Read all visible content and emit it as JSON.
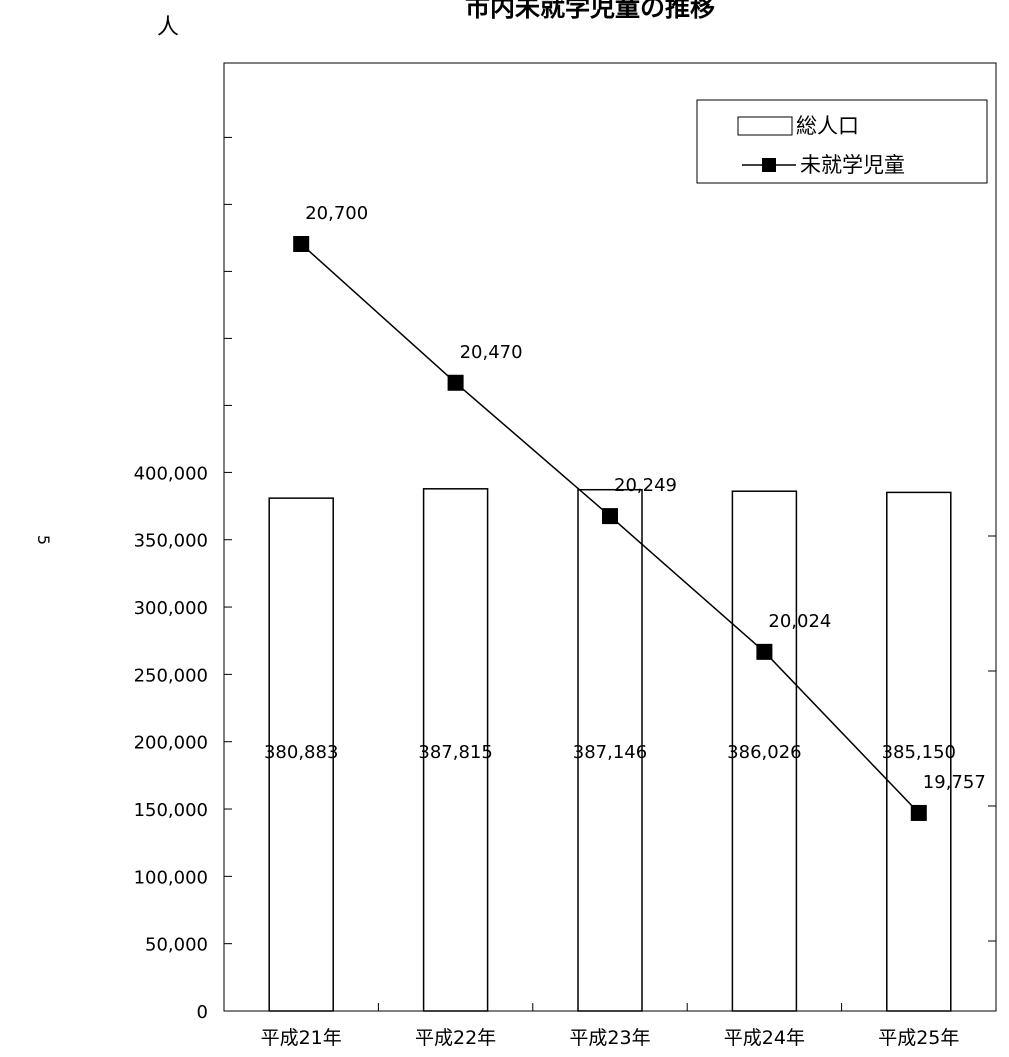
{
  "chart_data": {
    "type": "bar",
    "title": "市内未就学児童の推移",
    "unit_label": "人",
    "side_mark": "5",
    "categories": [
      "平成21年",
      "平成22年",
      "平成23年",
      "平成24年",
      "平成25年"
    ],
    "y_ticks": [
      "0",
      "50,000",
      "100,000",
      "150,000",
      "200,000",
      "250,000",
      "300,000",
      "350,000",
      "400,000"
    ],
    "ylim": [
      0,
      400000
    ],
    "grid": false,
    "legend_position": "top-right",
    "series": [
      {
        "name": "総人口",
        "type": "bar",
        "values": [
          380883,
          387815,
          387146,
          386026,
          385150
        ],
        "labels": [
          "380,883",
          "387,815",
          "387,146",
          "386,026",
          "385,150"
        ],
        "color": "#ffffff"
      },
      {
        "name": "未就学児童",
        "type": "line",
        "marker": "square",
        "values": [
          20700,
          20470,
          20249,
          20024,
          19757
        ],
        "labels": [
          "20,700",
          "20,470",
          "20,249",
          "20,024",
          "19,757"
        ],
        "color": "#000000",
        "secondary_ylim": [
          19500,
          21000
        ]
      }
    ]
  }
}
